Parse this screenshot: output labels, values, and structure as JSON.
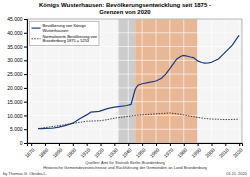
{
  "chart_data": {
    "type": "line",
    "title": "Königs Wusterhausen: Bevölkerungsentwicklung seit 1875 -\nGrenzen von 2020",
    "xlim": [
      1867,
      2022
    ],
    "ylim": [
      0,
      45000
    ],
    "xticks": [
      1870,
      1880,
      1890,
      1900,
      1910,
      1920,
      1930,
      1940,
      1950,
      1960,
      1970,
      1980,
      1990,
      2000,
      2010,
      2020
    ],
    "yticks": [
      0,
      {
        "value": 5000,
        "label": "5.000"
      },
      {
        "value": 10000,
        "label": "10.000"
      },
      {
        "value": 15000,
        "label": "15.000"
      },
      {
        "value": 20000,
        "label": "20.000"
      },
      {
        "value": 25000,
        "label": "25.000"
      },
      {
        "value": 30000,
        "label": "30.000"
      },
      {
        "value": 35000,
        "label": "35.000"
      },
      {
        "value": 40000,
        "label": "40.000"
      },
      {
        "value": 45000,
        "label": "45.000"
      }
    ],
    "grid": true,
    "legend": "upper left",
    "spans": [
      {
        "start": 1933,
        "end": 1945,
        "color": "#cccccc"
      },
      {
        "start": 1945,
        "end": 1990,
        "color": "#e8b896"
      }
    ],
    "series": [
      {
        "name": "Bevölkerung von Königs\nWusterhausen",
        "color": "#1a3a8a",
        "line_style": "solid",
        "x": [
          1875,
          1878,
          1880,
          1885,
          1890,
          1895,
          1900,
          1905,
          1910,
          1913,
          1919,
          1925,
          1930,
          1933,
          1939,
          1942,
          1945,
          1947,
          1950,
          1955,
          1960,
          1964,
          1967,
          1970,
          1975,
          1978,
          1980,
          1985,
          1987,
          1990,
          1993,
          1995,
          1998,
          2000,
          2003,
          2005,
          2008,
          2010,
          2012,
          2015,
          2017,
          2019,
          2020
        ],
        "values": [
          5253,
          5253,
          5280,
          5350,
          5750,
          6400,
          7200,
          8800,
          10200,
          11200,
          11500,
          12500,
          13000,
          13200,
          13600,
          14000,
          19500,
          21000,
          21500,
          22000,
          22500,
          23500,
          25000,
          27000,
          30500,
          31500,
          31800,
          31200,
          31000,
          29800,
          29200,
          29000,
          29100,
          29300,
          30000,
          30500,
          32000,
          33000,
          34000,
          35500,
          37000,
          38500,
          39000
        ]
      },
      {
        "name": "Normalisierte Bevölkerung von\nBrandenburg 1875 = 5253",
        "color": "#333333",
        "line_style": "dotted",
        "x": [
          1875,
          1880,
          1890,
          1900,
          1910,
          1920,
          1925,
          1930,
          1933,
          1939,
          1945,
          1950,
          1960,
          1964,
          1970,
          1975,
          1980,
          1985,
          1990,
          1995,
          2000,
          2005,
          2010,
          2015,
          2020
        ],
        "values": [
          5253,
          5600,
          6300,
          7100,
          7900,
          8100,
          8500,
          9000,
          9200,
          9600,
          10000,
          10200,
          10600,
          10700,
          10900,
          10600,
          10200,
          9700,
          9300,
          8900,
          8700,
          8600,
          8500,
          8550,
          8650
        ]
      }
    ],
    "annotations": [
      "by Thomas G. Obruba L.",
      "Quellen: Amt für Statistik Berlin-Brandenburg\nHistorische Gemeindeverzeichnisse und Rückführung der Gemeinden an Land Brandenburg",
      "01.11. 2020"
    ]
  }
}
